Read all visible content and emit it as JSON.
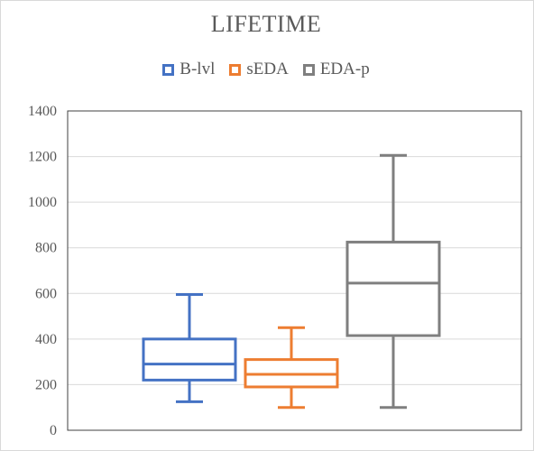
{
  "chart_data": {
    "type": "box",
    "title": "LIFETIME",
    "xlabel": "",
    "ylabel": "",
    "ylim": [
      0,
      1400
    ],
    "yticks": [
      "0",
      "200",
      "400",
      "600",
      "800",
      "1000",
      "1200",
      "1400"
    ],
    "grid": true,
    "legend_position": "top",
    "series": [
      {
        "name": "B-lvl",
        "color": "#4472c4",
        "whisker_low": 125,
        "q1": 220,
        "median": 290,
        "q3": 400,
        "whisker_high": 595
      },
      {
        "name": "sEDA",
        "color": "#ed7d31",
        "whisker_low": 100,
        "q1": 190,
        "median": 245,
        "q3": 310,
        "whisker_high": 450
      },
      {
        "name": "EDA-p",
        "color": "#7f7f7f",
        "whisker_low": 100,
        "q1": 415,
        "median": 645,
        "q3": 825,
        "whisker_high": 1205
      }
    ]
  }
}
